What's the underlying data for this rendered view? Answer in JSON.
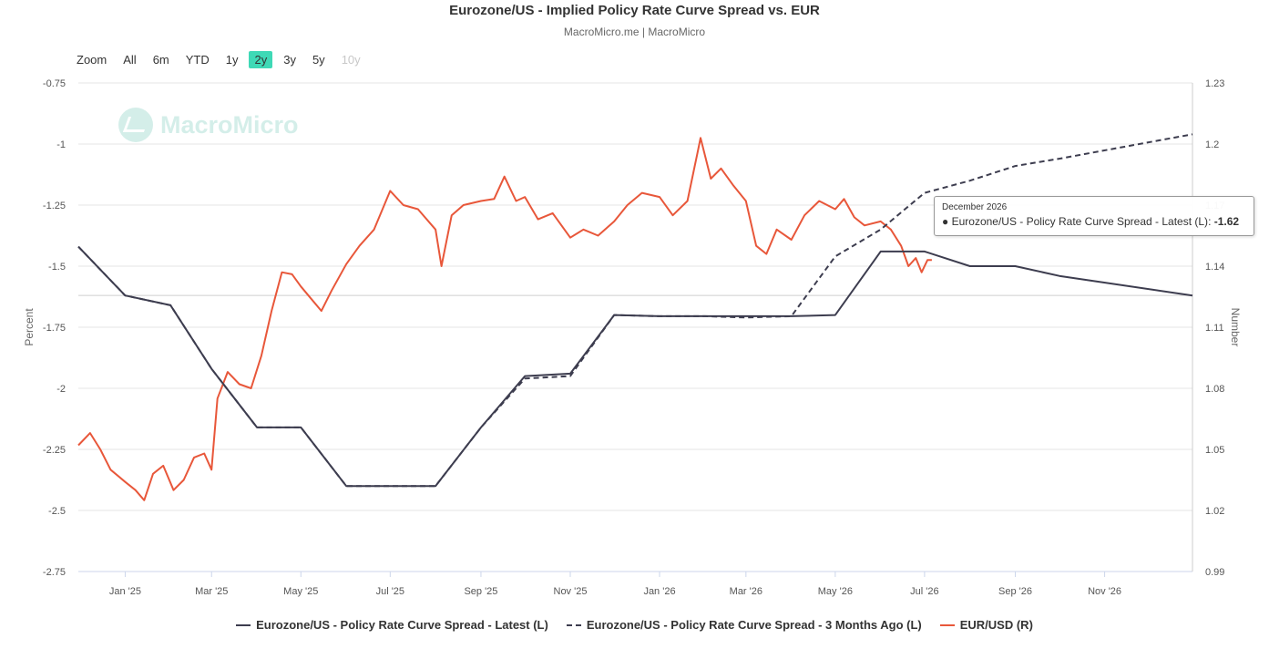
{
  "header": {
    "title": "Eurozone/US - Implied Policy Rate Curve Spread vs. EUR",
    "subtitle": "MacroMicro.me | MacroMicro"
  },
  "watermark": {
    "text": "MacroMicro",
    "icon": "macromicro-logo-icon"
  },
  "range_selector": {
    "label": "Zoom",
    "buttons": [
      {
        "label": "All",
        "state": "normal"
      },
      {
        "label": "6m",
        "state": "normal"
      },
      {
        "label": "YTD",
        "state": "normal"
      },
      {
        "label": "1y",
        "state": "normal"
      },
      {
        "label": "2y",
        "state": "active"
      },
      {
        "label": "3y",
        "state": "normal"
      },
      {
        "label": "5y",
        "state": "normal"
      },
      {
        "label": "10y",
        "state": "disabled"
      }
    ]
  },
  "tooltip": {
    "date": "December 2026",
    "series": "Eurozone/US - Policy Rate Curve Spread - Latest (L)",
    "value": "-1.62"
  },
  "chart_data": {
    "type": "line",
    "title": "Eurozone/US - Implied Policy Rate Curve Spread vs. EUR",
    "subtitle": "MacroMicro.me | MacroMicro",
    "x_range": [
      "2024-11-30",
      "2026-12-31"
    ],
    "x_ticks": [
      "Jan '25",
      "Mar '25",
      "May '25",
      "Jul '25",
      "Sep '25",
      "Nov '25",
      "Jan '26",
      "Mar '26",
      "May '26",
      "Jul '26",
      "Sep '26",
      "Nov '26"
    ],
    "x_tick_dates": [
      "2025-01-01",
      "2025-03-01",
      "2025-05-01",
      "2025-07-01",
      "2025-09-01",
      "2025-11-01",
      "2026-01-01",
      "2026-03-01",
      "2026-05-01",
      "2026-07-01",
      "2026-09-01",
      "2026-11-01"
    ],
    "y_left": {
      "label": "Percent",
      "range": [
        -2.75,
        -0.75
      ],
      "ticks": [
        "-0.75",
        "-1",
        "-1.25",
        "-1.5",
        "-1.75",
        "-2",
        "-2.25",
        "-2.5",
        "-2.75"
      ]
    },
    "y_right": {
      "label": "Number",
      "range": [
        0.99,
        1.23
      ],
      "ticks": [
        "1.23",
        "1.2",
        "1.17",
        "1.14",
        "1.11",
        "1.08",
        "1.05",
        "1.02",
        "0.99"
      ]
    },
    "grid": true,
    "legend_position": "bottom-center",
    "series": [
      {
        "name": "Eurozone/US - Policy Rate Curve Spread - Latest (L)",
        "axis": "left",
        "color": "#3d3d4f",
        "style": "solid",
        "points": [
          {
            "x": "2024-11-30",
            "y": -1.42
          },
          {
            "x": "2025-01-01",
            "y": -1.62
          },
          {
            "x": "2025-02-01",
            "y": -1.66
          },
          {
            "x": "2025-03-01",
            "y": -1.92
          },
          {
            "x": "2025-04-01",
            "y": -2.16
          },
          {
            "x": "2025-05-01",
            "y": -2.16
          },
          {
            "x": "2025-06-01",
            "y": -2.4
          },
          {
            "x": "2025-07-01",
            "y": -2.4
          },
          {
            "x": "2025-08-01",
            "y": -2.4
          },
          {
            "x": "2025-09-01",
            "y": -2.16
          },
          {
            "x": "2025-10-01",
            "y": -1.95
          },
          {
            "x": "2025-11-01",
            "y": -1.94
          },
          {
            "x": "2025-12-01",
            "y": -1.7
          },
          {
            "x": "2026-01-01",
            "y": -1.705
          },
          {
            "x": "2026-02-01",
            "y": -1.705
          },
          {
            "x": "2026-03-01",
            "y": -1.705
          },
          {
            "x": "2026-04-01",
            "y": -1.705
          },
          {
            "x": "2026-05-01",
            "y": -1.7
          },
          {
            "x": "2026-06-01",
            "y": -1.44
          },
          {
            "x": "2026-07-01",
            "y": -1.44
          },
          {
            "x": "2026-08-01",
            "y": -1.5
          },
          {
            "x": "2026-09-01",
            "y": -1.5
          },
          {
            "x": "2026-10-01",
            "y": -1.54
          },
          {
            "x": "2026-12-31",
            "y": -1.62
          }
        ]
      },
      {
        "name": "Eurozone/US - Policy Rate Curve Spread - 3 Months Ago (L)",
        "axis": "left",
        "color": "#3d3d4f",
        "style": "dashed",
        "points": [
          {
            "x": "2024-11-30",
            "y": -1.42
          },
          {
            "x": "2025-01-01",
            "y": -1.62
          },
          {
            "x": "2025-02-01",
            "y": -1.66
          },
          {
            "x": "2025-03-01",
            "y": -1.92
          },
          {
            "x": "2025-04-01",
            "y": -2.16
          },
          {
            "x": "2025-05-01",
            "y": -2.16
          },
          {
            "x": "2025-06-01",
            "y": -2.4
          },
          {
            "x": "2025-07-01",
            "y": -2.4
          },
          {
            "x": "2025-08-01",
            "y": -2.4
          },
          {
            "x": "2025-09-01",
            "y": -2.16
          },
          {
            "x": "2025-10-01",
            "y": -1.96
          },
          {
            "x": "2025-11-01",
            "y": -1.95
          },
          {
            "x": "2025-12-01",
            "y": -1.7
          },
          {
            "x": "2026-01-01",
            "y": -1.705
          },
          {
            "x": "2026-02-01",
            "y": -1.705
          },
          {
            "x": "2026-03-01",
            "y": -1.71
          },
          {
            "x": "2026-04-01",
            "y": -1.705
          },
          {
            "x": "2026-05-01",
            "y": -1.46
          },
          {
            "x": "2026-06-01",
            "y": -1.35
          },
          {
            "x": "2026-07-01",
            "y": -1.2
          },
          {
            "x": "2026-08-01",
            "y": -1.15
          },
          {
            "x": "2026-09-01",
            "y": -1.09
          },
          {
            "x": "2026-10-01",
            "y": -1.06
          },
          {
            "x": "2026-12-31",
            "y": -0.96
          }
        ]
      },
      {
        "name": "EUR/USD (R)",
        "axis": "right",
        "color": "#e8573a",
        "style": "solid",
        "points": [
          {
            "x": "2024-11-30",
            "y": 1.052
          },
          {
            "x": "2024-12-08",
            "y": 1.058
          },
          {
            "x": "2024-12-15",
            "y": 1.05
          },
          {
            "x": "2024-12-22",
            "y": 1.04
          },
          {
            "x": "2025-01-01",
            "y": 1.034
          },
          {
            "x": "2025-01-08",
            "y": 1.03
          },
          {
            "x": "2025-01-14",
            "y": 1.025
          },
          {
            "x": "2025-01-20",
            "y": 1.038
          },
          {
            "x": "2025-01-27",
            "y": 1.042
          },
          {
            "x": "2025-02-03",
            "y": 1.03
          },
          {
            "x": "2025-02-10",
            "y": 1.035
          },
          {
            "x": "2025-02-17",
            "y": 1.046
          },
          {
            "x": "2025-02-24",
            "y": 1.048
          },
          {
            "x": "2025-03-01",
            "y": 1.04
          },
          {
            "x": "2025-03-05",
            "y": 1.075
          },
          {
            "x": "2025-03-12",
            "y": 1.088
          },
          {
            "x": "2025-03-20",
            "y": 1.082
          },
          {
            "x": "2025-03-28",
            "y": 1.08
          },
          {
            "x": "2025-04-04",
            "y": 1.096
          },
          {
            "x": "2025-04-11",
            "y": 1.118
          },
          {
            "x": "2025-04-18",
            "y": 1.137
          },
          {
            "x": "2025-04-25",
            "y": 1.136
          },
          {
            "x": "2025-05-01",
            "y": 1.13
          },
          {
            "x": "2025-05-08",
            "y": 1.124
          },
          {
            "x": "2025-05-15",
            "y": 1.118
          },
          {
            "x": "2025-05-22",
            "y": 1.128
          },
          {
            "x": "2025-06-01",
            "y": 1.141
          },
          {
            "x": "2025-06-10",
            "y": 1.15
          },
          {
            "x": "2025-06-20",
            "y": 1.158
          },
          {
            "x": "2025-07-01",
            "y": 1.177
          },
          {
            "x": "2025-07-10",
            "y": 1.17
          },
          {
            "x": "2025-07-20",
            "y": 1.168
          },
          {
            "x": "2025-08-01",
            "y": 1.158
          },
          {
            "x": "2025-08-05",
            "y": 1.14
          },
          {
            "x": "2025-08-12",
            "y": 1.165
          },
          {
            "x": "2025-08-20",
            "y": 1.17
          },
          {
            "x": "2025-09-01",
            "y": 1.172
          },
          {
            "x": "2025-09-10",
            "y": 1.173
          },
          {
            "x": "2025-09-17",
            "y": 1.184
          },
          {
            "x": "2025-09-25",
            "y": 1.172
          },
          {
            "x": "2025-10-01",
            "y": 1.174
          },
          {
            "x": "2025-10-10",
            "y": 1.163
          },
          {
            "x": "2025-10-20",
            "y": 1.166
          },
          {
            "x": "2025-11-01",
            "y": 1.154
          },
          {
            "x": "2025-11-10",
            "y": 1.158
          },
          {
            "x": "2025-11-20",
            "y": 1.155
          },
          {
            "x": "2025-12-01",
            "y": 1.162
          },
          {
            "x": "2025-12-10",
            "y": 1.17
          },
          {
            "x": "2025-12-20",
            "y": 1.176
          },
          {
            "x": "2026-01-01",
            "y": 1.174
          },
          {
            "x": "2026-01-10",
            "y": 1.165
          },
          {
            "x": "2026-01-20",
            "y": 1.172
          },
          {
            "x": "2026-01-27",
            "y": 1.196
          },
          {
            "x": "2026-01-29",
            "y": 1.203
          },
          {
            "x": "2026-02-05",
            "y": 1.183
          },
          {
            "x": "2026-02-12",
            "y": 1.188
          },
          {
            "x": "2026-02-20",
            "y": 1.18
          },
          {
            "x": "2026-03-01",
            "y": 1.172
          },
          {
            "x": "2026-03-08",
            "y": 1.15
          },
          {
            "x": "2026-03-15",
            "y": 1.146
          },
          {
            "x": "2026-03-22",
            "y": 1.158
          },
          {
            "x": "2026-04-01",
            "y": 1.153
          },
          {
            "x": "2026-04-10",
            "y": 1.165
          },
          {
            "x": "2026-04-20",
            "y": 1.172
          },
          {
            "x": "2026-05-01",
            "y": 1.168
          },
          {
            "x": "2026-05-07",
            "y": 1.173
          },
          {
            "x": "2026-05-14",
            "y": 1.164
          },
          {
            "x": "2026-05-21",
            "y": 1.16
          },
          {
            "x": "2026-06-01",
            "y": 1.162
          },
          {
            "x": "2026-06-08",
            "y": 1.158
          },
          {
            "x": "2026-06-15",
            "y": 1.15
          },
          {
            "x": "2026-06-20",
            "y": 1.14
          },
          {
            "x": "2026-06-25",
            "y": 1.144
          },
          {
            "x": "2026-06-29",
            "y": 1.137
          },
          {
            "x": "2026-07-03",
            "y": 1.143
          },
          {
            "x": "2026-07-06",
            "y": 1.143
          }
        ]
      }
    ]
  }
}
